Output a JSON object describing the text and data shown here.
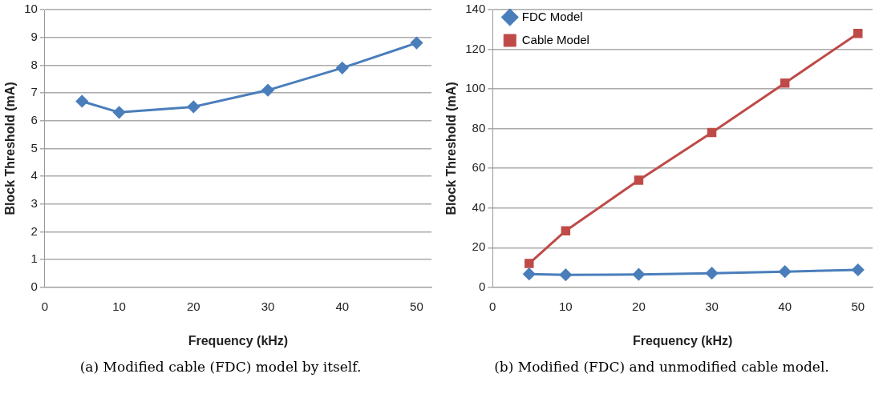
{
  "chart_data": [
    {
      "type": "line",
      "xlabel": "Frequency (kHz)",
      "ylabel": "Block Threshold (mA)",
      "x": [
        5,
        10,
        20,
        30,
        40,
        50
      ],
      "xlim": [
        0,
        52
      ],
      "xticks": [
        0,
        10,
        20,
        30,
        40,
        50
      ],
      "ylim": [
        0,
        10
      ],
      "yticks": [
        0,
        1,
        2,
        3,
        4,
        5,
        6,
        7,
        8,
        9,
        10
      ],
      "grid": "y",
      "legend": false,
      "marker": "diamond",
      "series": [
        {
          "color": "#4a7ebb",
          "values": [
            6.7,
            6.3,
            6.5,
            7.1,
            7.9,
            8.8
          ]
        }
      ],
      "annotations": [
        "(a) Modified cable (FDC) model by itself."
      ]
    },
    {
      "type": "line",
      "xlabel": "Frequency (kHz)",
      "ylabel": "Block Threshold (mA)",
      "x": [
        5,
        10,
        20,
        30,
        40,
        50
      ],
      "xlim": [
        0,
        52
      ],
      "xticks": [
        0,
        10,
        20,
        30,
        40,
        50
      ],
      "ylim": [
        0,
        140
      ],
      "yticks": [
        0,
        20,
        40,
        60,
        80,
        100,
        120,
        140
      ],
      "grid": "y",
      "legend": "top left",
      "series": [
        {
          "name": "FDC Model",
          "color": "#4a7ebb",
          "marker": "diamond",
          "values": [
            6.7,
            6.3,
            6.5,
            7.1,
            7.9,
            8.8
          ]
        },
        {
          "name": "Cable Model",
          "color": "#be4b48",
          "marker": "square",
          "values": [
            12,
            28.5,
            54,
            78,
            103,
            128
          ]
        }
      ],
      "annotations": [
        "(b) Modified (FDC) and unmodified cable model."
      ]
    }
  ]
}
